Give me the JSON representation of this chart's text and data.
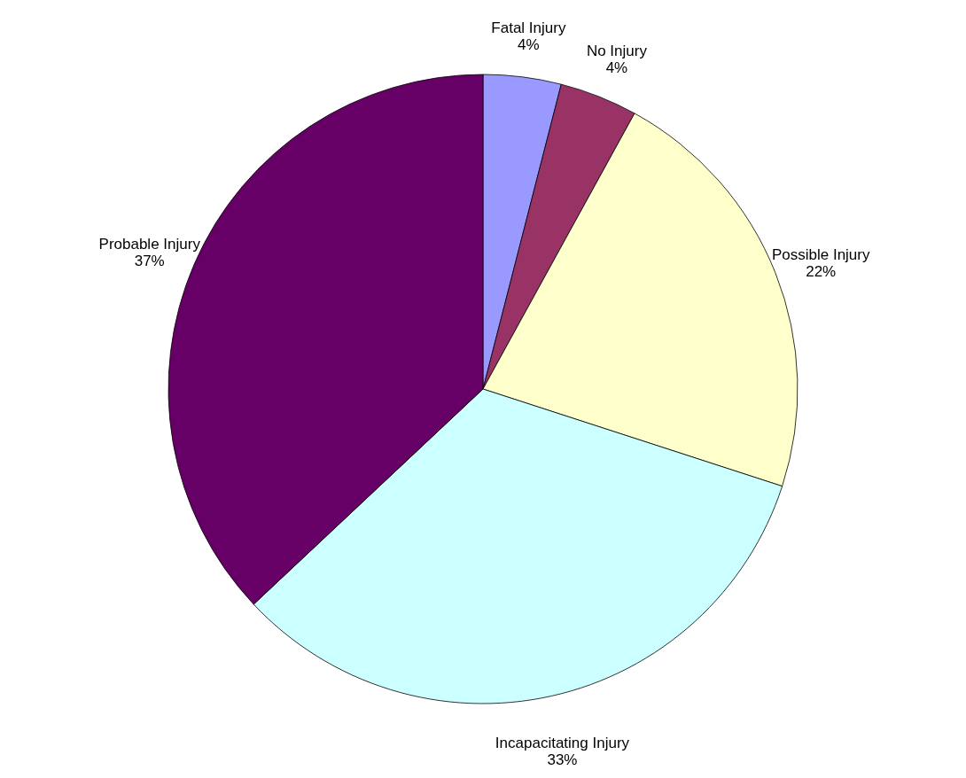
{
  "chart_data": {
    "type": "pie",
    "categories": [
      "Fatal Injury",
      "No Injury",
      "Possible Injury",
      "Incapacitating Injury",
      "Probable Injury"
    ],
    "values": [
      4,
      4,
      22,
      33,
      37
    ],
    "value_labels": [
      "4%",
      "4%",
      "22%",
      "33%",
      "37%"
    ],
    "colors": [
      "#9999ff",
      "#993366",
      "#ffffcc",
      "#ccffff",
      "#660066"
    ]
  }
}
